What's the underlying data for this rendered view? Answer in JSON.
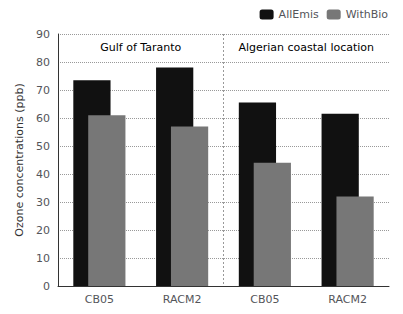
{
  "chart_data": {
    "type": "bar",
    "ylabel": "Ozone concentrations (ppb)",
    "categories": [
      "CB05",
      "RACM2",
      "CB05",
      "RACM2"
    ],
    "series": [
      {
        "name": "AllEmis",
        "color": "#111111",
        "values": [
          73.5,
          78.0,
          65.5,
          61.5
        ]
      },
      {
        "name": "WithBio",
        "color": "#777777",
        "values": [
          61.0,
          57.0,
          44.0,
          32.0
        ]
      }
    ],
    "annotations": [
      "Gulf of Taranto",
      "Algerian coastal location"
    ],
    "ylim": [
      0,
      90
    ],
    "yticks": [
      0,
      10,
      20,
      30,
      40,
      50,
      60,
      70,
      80,
      90
    ],
    "grid": true,
    "legend": "upper right"
  }
}
